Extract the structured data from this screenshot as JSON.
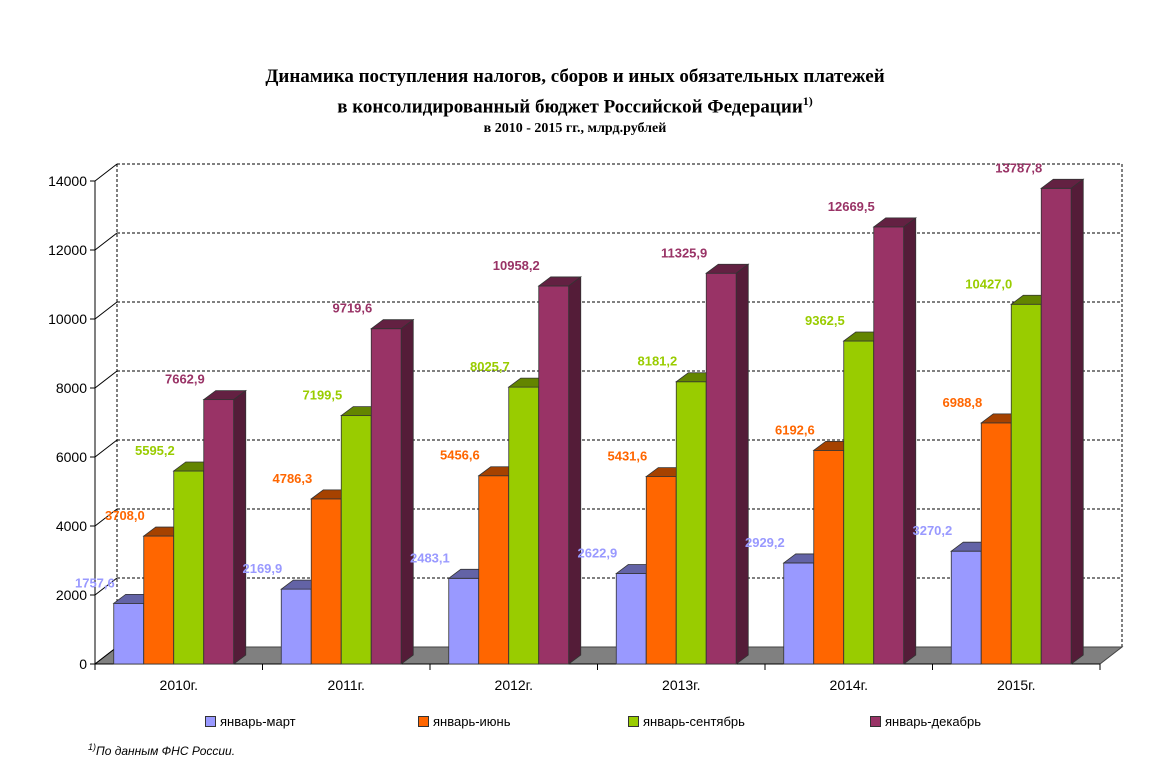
{
  "title_line1": "Динамика поступления налогов, сборов и иных обязательных платежей",
  "title_line2": "в консолидированный бюджет Российской Федерации",
  "title_sup": "1)",
  "subtitle": "в 2010 - 2015 гг., млрд.рублей",
  "footnote_mark": "1)",
  "footnote_text": "По данным ФНС России.",
  "chart_data": {
    "type": "bar",
    "title": "Динамика поступления налогов, сборов и иных обязательных платежей в консолидированный бюджет Российской Федерации",
    "subtitle": "в 2010 - 2015 гг., млрд.рублей",
    "categories": [
      "2010г.",
      "2011г.",
      "2012г.",
      "2013г.",
      "2014г.",
      "2015г."
    ],
    "series": [
      {
        "name": "январь-март",
        "color": "#9999ff",
        "label_color": "#9999ff",
        "values": [
          1757.6,
          2169.9,
          2483.1,
          2622.9,
          2929.2,
          3270.2
        ],
        "labels": [
          "1757,6",
          "2169,9",
          "2483,1",
          "2622,9",
          "2929,2",
          "3270,2"
        ]
      },
      {
        "name": "январь-июнь",
        "color": "#ff6600",
        "label_color": "#ff6600",
        "values": [
          3708.0,
          4786.3,
          5456.6,
          5431.6,
          6192.6,
          6988.8
        ],
        "labels": [
          "3708,0",
          "4786,3",
          "5456,6",
          "5431,6",
          "6192,6",
          "6988,8"
        ]
      },
      {
        "name": "январь-сентябрь",
        "color": "#99cc00",
        "label_color": "#99cc00",
        "values": [
          5595.2,
          7199.5,
          8025.7,
          8181.2,
          9362.5,
          10427.0
        ],
        "labels": [
          "5595,2",
          "7199,5",
          "8025,7",
          "8181,2",
          "9362,5",
          "10427,0"
        ]
      },
      {
        "name": "январь-декабрь",
        "color": "#993366",
        "label_color": "#993366",
        "values": [
          7662.9,
          9719.6,
          10958.2,
          11325.9,
          12669.5,
          13787.8
        ],
        "labels": [
          "7662,9",
          "9719,6",
          "10958,2",
          "11325,9",
          "12669,5",
          "13787,8"
        ]
      }
    ],
    "ylim": [
      0,
      14000
    ],
    "yticks": [
      0,
      2000,
      4000,
      6000,
      8000,
      10000,
      12000,
      14000
    ],
    "grid": true,
    "legend_position": "bottom",
    "three_d": true
  }
}
